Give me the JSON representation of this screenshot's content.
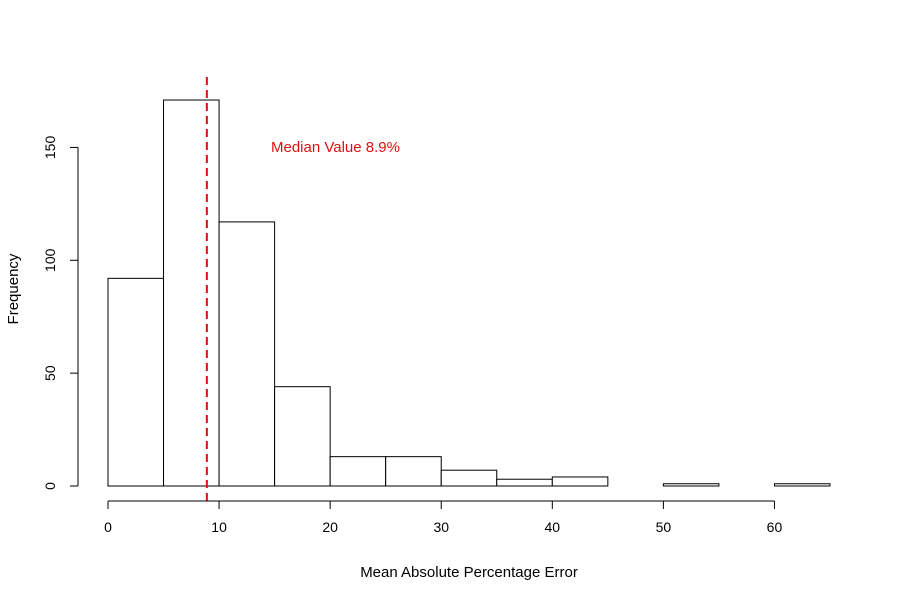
{
  "chart_data": {
    "type": "histogram",
    "title": "",
    "xlabel": "Mean Absolute Percentage Error",
    "ylabel": "Frequency",
    "bins": [
      {
        "start": 0,
        "end": 5,
        "count": 92
      },
      {
        "start": 5,
        "end": 10,
        "count": 171
      },
      {
        "start": 10,
        "end": 15,
        "count": 117
      },
      {
        "start": 15,
        "end": 20,
        "count": 44
      },
      {
        "start": 20,
        "end": 25,
        "count": 13
      },
      {
        "start": 25,
        "end": 30,
        "count": 13
      },
      {
        "start": 30,
        "end": 35,
        "count": 7
      },
      {
        "start": 35,
        "end": 40,
        "count": 3
      },
      {
        "start": 40,
        "end": 45,
        "count": 4
      },
      {
        "start": 45,
        "end": 50,
        "count": 0
      },
      {
        "start": 50,
        "end": 55,
        "count": 1
      },
      {
        "start": 55,
        "end": 60,
        "count": 0
      },
      {
        "start": 60,
        "end": 65,
        "count": 1
      }
    ],
    "xlim": [
      0,
      65
    ],
    "ylim": [
      0,
      175
    ],
    "xticks": [
      0,
      10,
      20,
      30,
      40,
      50,
      60
    ],
    "yticks": [
      0,
      50,
      100,
      150
    ],
    "grid": false,
    "median_line": {
      "x": 8.9,
      "label": "Median Value 8.9%",
      "color": "#dd1111",
      "style": "dashed"
    }
  }
}
